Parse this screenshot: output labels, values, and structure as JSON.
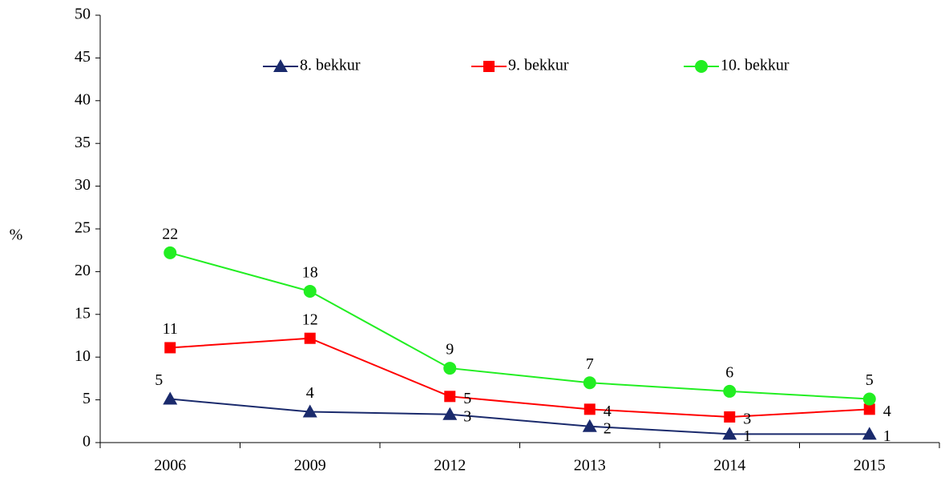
{
  "chart_data": {
    "type": "line",
    "y_label": "%",
    "categories": [
      "2006",
      "2009",
      "2012",
      "2013",
      "2014",
      "2015"
    ],
    "series": [
      {
        "name": "8. bekkur",
        "color": "#1a2a6c",
        "marker": "triangle",
        "values": [
          5.1,
          3.6,
          3.3,
          1.9,
          1.0,
          1.0
        ],
        "value_labels": [
          "5",
          "4",
          "3",
          "2",
          "1",
          "1"
        ]
      },
      {
        "name": "9. bekkur",
        "color": "#ff0000",
        "marker": "square",
        "values": [
          11.1,
          12.2,
          5.4,
          3.9,
          3.0,
          3.9
        ],
        "value_labels": [
          "11",
          "12",
          "5",
          "4",
          "3",
          "4"
        ]
      },
      {
        "name": "10. bekkur",
        "color": "#22ee22",
        "marker": "circle",
        "values": [
          22.2,
          17.7,
          8.7,
          7.0,
          6.0,
          5.1
        ],
        "value_labels": [
          "22",
          "18",
          "9",
          "7",
          "6",
          "5"
        ]
      }
    ],
    "ylim": [
      0,
      50
    ],
    "yticks": [
      0,
      5,
      10,
      15,
      20,
      25,
      30,
      35,
      40,
      45,
      50
    ],
    "legend": "top"
  }
}
